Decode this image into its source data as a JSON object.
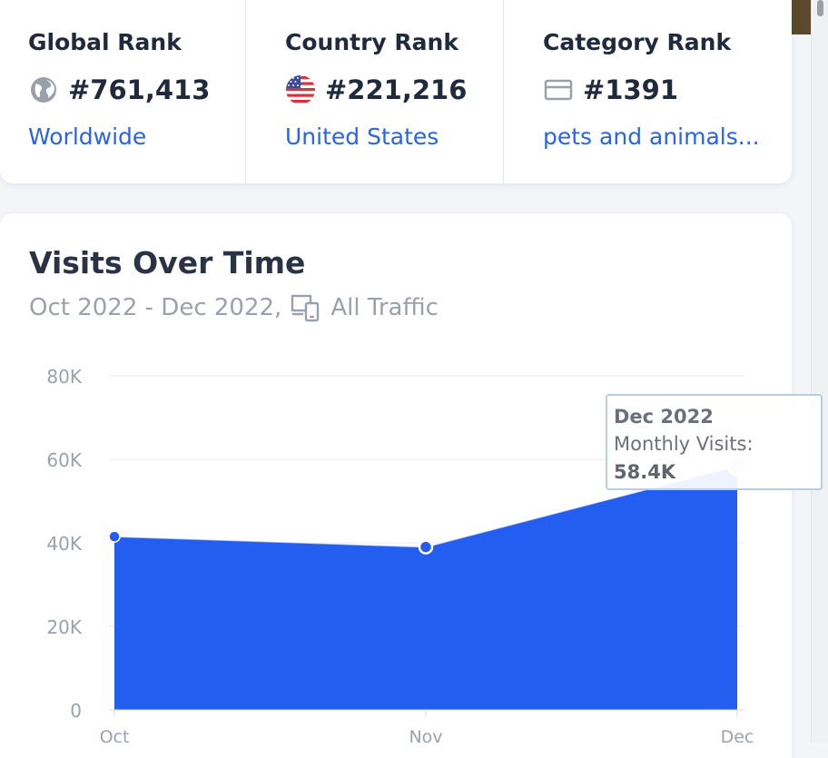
{
  "ranks": {
    "global": {
      "title": "Global Rank",
      "value": "#761,413",
      "link": "Worldwide",
      "icon": "globe-icon"
    },
    "country": {
      "title": "Country Rank",
      "value": "#221,216",
      "link": "United States",
      "icon": "us-flag-icon"
    },
    "category": {
      "title": "Category Rank",
      "value": "#1391",
      "link": "pets and animals...",
      "icon": "category-card-icon"
    }
  },
  "visits": {
    "title": "Visits Over Time",
    "range": "Oct 2022 - Dec 2022,",
    "traffic": "All Traffic",
    "traffic_icon": "devices-icon"
  },
  "tooltip": {
    "title": "Dec 2022",
    "label": "Monthly Visits:",
    "value": "58.4K"
  },
  "colors": {
    "accent": "#2a62e8",
    "area_fill": "#245ef0",
    "text_dark": "#1f2a3c",
    "text_muted": "#9aa1ad"
  },
  "chart_data": {
    "type": "area",
    "categories": [
      "Oct",
      "Nov",
      "Dec"
    ],
    "values": [
      41500,
      39000,
      58400
    ],
    "ylim": [
      0,
      80000
    ],
    "yticks": [
      0,
      20000,
      40000,
      60000,
      80000
    ],
    "ytick_labels": [
      "0",
      "20K",
      "40K",
      "60K",
      "80K"
    ],
    "grid": true
  }
}
